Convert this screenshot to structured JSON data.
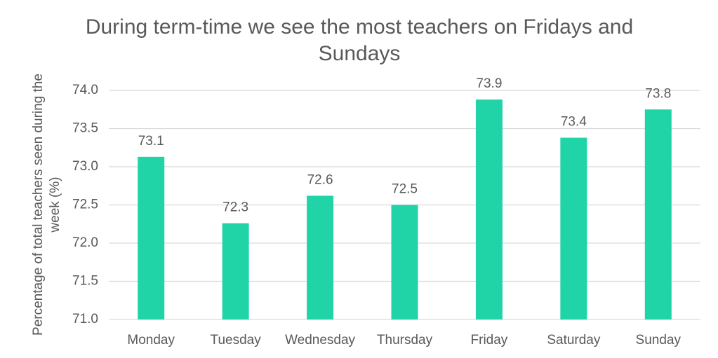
{
  "chart_data": {
    "type": "bar",
    "title": "During term-time we see the most teachers on Fridays and Sundays",
    "y_label": "Percentage of total teachers seen during the week (%)",
    "categories": [
      "Monday",
      "Tuesday",
      "Wednesday",
      "Thursday",
      "Friday",
      "Saturday",
      "Sunday"
    ],
    "values": [
      73.13,
      72.26,
      72.62,
      72.5,
      73.88,
      73.38,
      73.75
    ],
    "value_labels": [
      "73.1",
      "72.3",
      "72.6",
      "72.5",
      "73.9",
      "73.4",
      "73.8"
    ],
    "color": "#21d4a7",
    "ylim": [
      71,
      74
    ],
    "yticks": [
      {
        "value": 71,
        "label": "71.0"
      },
      {
        "value": 71.5,
        "label": "71.5"
      },
      {
        "value": 72,
        "label": "72.0"
      },
      {
        "value": 72.5,
        "label": "72.5"
      },
      {
        "value": 73,
        "label": "73.0"
      },
      {
        "value": 73.5,
        "label": "73.5"
      },
      {
        "value": 74,
        "label": "74.0"
      }
    ],
    "grid": true
  }
}
